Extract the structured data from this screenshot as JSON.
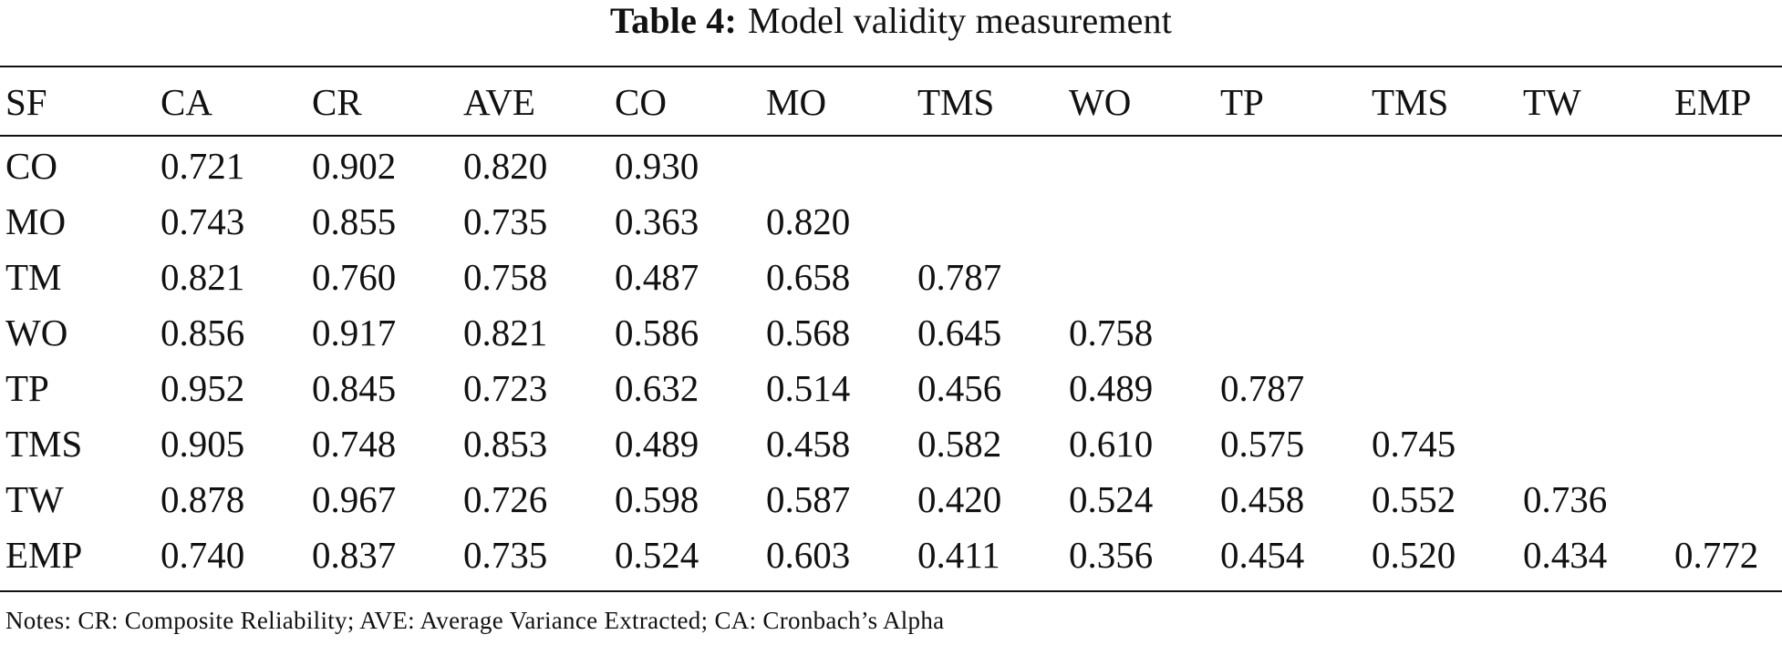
{
  "caption": {
    "label": "Table 4:",
    "title": "Model validity measurement"
  },
  "table": {
    "headers": [
      "SF",
      "CA",
      "CR",
      "AVE",
      "CO",
      "MO",
      "TMS",
      "WO",
      "TP",
      "TMS",
      "TW",
      "EMP"
    ],
    "rows": [
      [
        "CO",
        "0.721",
        "0.902",
        "0.820",
        "0.930",
        "",
        "",
        "",
        "",
        "",
        "",
        ""
      ],
      [
        "MO",
        "0.743",
        "0.855",
        "0.735",
        "0.363",
        "0.820",
        "",
        "",
        "",
        "",
        "",
        ""
      ],
      [
        "TM",
        "0.821",
        "0.760",
        "0.758",
        "0.487",
        "0.658",
        "0.787",
        "",
        "",
        "",
        "",
        ""
      ],
      [
        "WO",
        "0.856",
        "0.917",
        "0.821",
        "0.586",
        "0.568",
        "0.645",
        "0.758",
        "",
        "",
        "",
        ""
      ],
      [
        "TP",
        "0.952",
        "0.845",
        "0.723",
        "0.632",
        "0.514",
        "0.456",
        "0.489",
        "0.787",
        "",
        "",
        ""
      ],
      [
        "TMS",
        "0.905",
        "0.748",
        "0.853",
        "0.489",
        "0.458",
        "0.582",
        "0.610",
        "0.575",
        "0.745",
        "",
        ""
      ],
      [
        "TW",
        "0.878",
        "0.967",
        "0.726",
        "0.598",
        "0.587",
        "0.420",
        "0.524",
        "0.458",
        "0.552",
        "0.736",
        ""
      ],
      [
        "EMP",
        "0.740",
        "0.837",
        "0.735",
        "0.524",
        "0.603",
        "0.411",
        "0.356",
        "0.454",
        "0.520",
        "0.434",
        "0.772"
      ]
    ]
  },
  "notes": "Notes: CR: Composite Reliability; AVE: Average Variance Extracted; CA: Cronbach’s Alpha"
}
